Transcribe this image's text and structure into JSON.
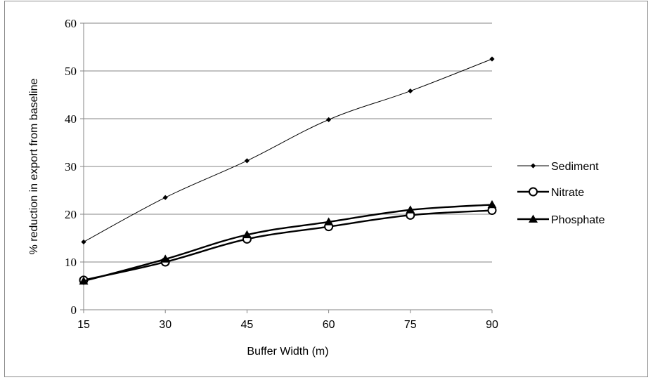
{
  "chart_data": {
    "type": "line",
    "title": "",
    "xlabel": "Buffer Width (m)",
    "ylabel": "% reduction in export from baseline",
    "categories": [
      "15",
      "30",
      "45",
      "60",
      "75",
      "90"
    ],
    "yticks": [
      "0",
      "10",
      "20",
      "30",
      "40",
      "50",
      "60"
    ],
    "ylim": [
      0,
      60
    ],
    "grid": "horizontal",
    "legend_position": "right",
    "series": [
      {
        "name": "Sediment",
        "marker": "diamond",
        "values": [
          14.2,
          23.5,
          31.2,
          39.8,
          45.8,
          52.5
        ]
      },
      {
        "name": "Nitrate",
        "marker": "open-circle",
        "values": [
          6.2,
          10.0,
          14.8,
          17.4,
          19.8,
          20.8
        ]
      },
      {
        "name": "Phosphate",
        "marker": "triangle",
        "values": [
          6.0,
          10.6,
          15.7,
          18.4,
          20.9,
          22.0
        ]
      }
    ],
    "colors": {
      "line": "#000000",
      "grid": "#868686"
    }
  }
}
